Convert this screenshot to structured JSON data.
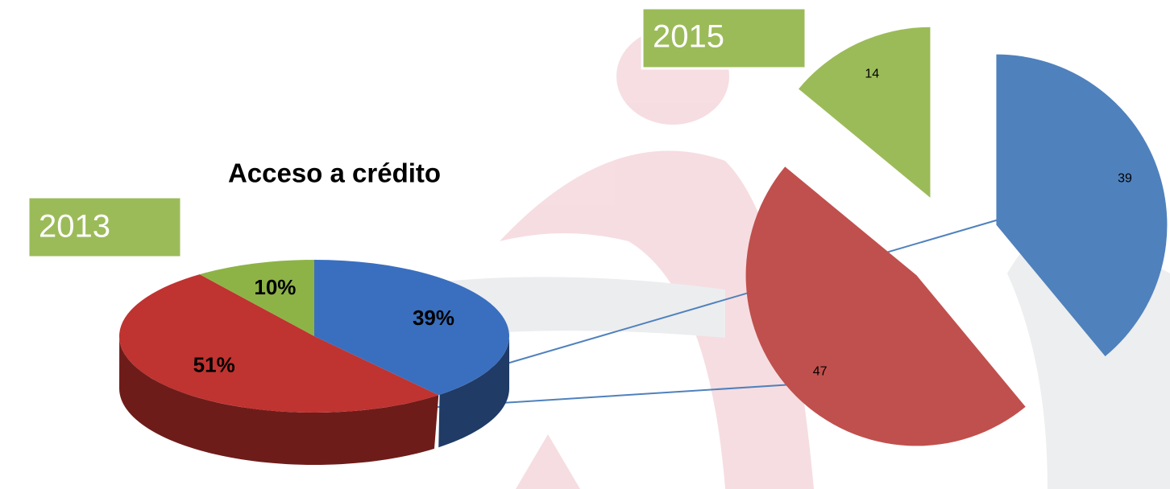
{
  "chart_data": [
    {
      "type": "pie3d",
      "title": "Acceso a crédito",
      "label": "2013",
      "values": [
        39,
        51,
        10
      ],
      "value_labels": [
        "39%",
        "51%",
        "10%"
      ],
      "colors": [
        "#3a6fbf",
        "#bf3330",
        "#8db347"
      ],
      "side_colors": [
        "#1f3b66",
        "#6e1c1a",
        "#4f6a22"
      ]
    },
    {
      "type": "pie",
      "label": "2015",
      "values": [
        39,
        47,
        14
      ],
      "colors": [
        "#4f81bd",
        "#c0504d",
        "#9bbb59"
      ],
      "exploded": true
    }
  ]
}
